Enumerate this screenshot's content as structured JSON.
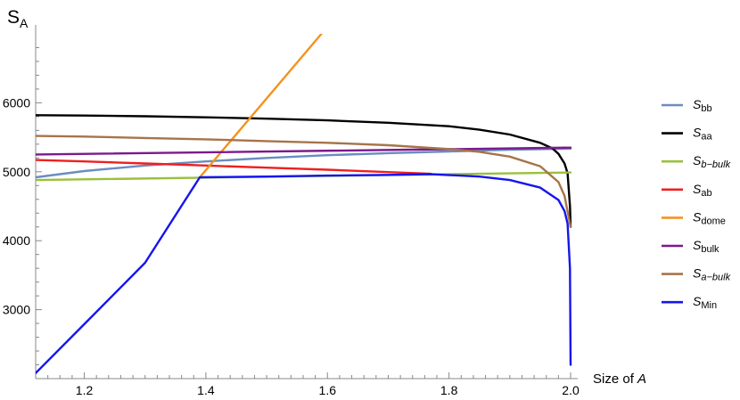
{
  "chart_data": {
    "type": "line",
    "ylabel": {
      "main": "S",
      "sub": "A"
    },
    "xlabel": {
      "prefix": "Size of ",
      "var": "A"
    },
    "xlim": [
      1.12,
      2.0
    ],
    "ylim": [
      2000,
      7000
    ],
    "xticks": [
      1.2,
      1.4,
      1.6,
      1.8,
      2.0
    ],
    "xtick_labels": [
      "1.2",
      "1.4",
      "1.6",
      "1.8",
      "2.0"
    ],
    "yticks": [
      3000,
      4000,
      5000,
      6000
    ],
    "ytick_labels": [
      "3000",
      "4000",
      "5000",
      "6000"
    ],
    "grid": false,
    "legend_position": "right",
    "series": [
      {
        "name": "S",
        "label_sub": "bb",
        "sub_italic": false,
        "color": "#6b8cc0",
        "x": [
          1.12,
          1.2,
          1.3,
          1.4,
          1.5,
          1.6,
          1.7,
          1.8,
          1.9,
          2.0
        ],
        "y": [
          4920,
          5010,
          5090,
          5150,
          5200,
          5240,
          5270,
          5295,
          5320,
          5335
        ]
      },
      {
        "name": "S",
        "label_sub": "aa",
        "sub_italic": false,
        "color": "#000000",
        "x": [
          1.12,
          1.2,
          1.3,
          1.4,
          1.5,
          1.6,
          1.7,
          1.8,
          1.85,
          1.9,
          1.95,
          1.97,
          1.98,
          1.99,
          1.995,
          1.999,
          2.0
        ],
        "y": [
          5820,
          5815,
          5805,
          5790,
          5770,
          5745,
          5710,
          5660,
          5610,
          5540,
          5420,
          5340,
          5260,
          5120,
          4980,
          4500,
          4200
        ]
      },
      {
        "name": "S",
        "label_sub": "b−bulk",
        "sub_italic": true,
        "color": "#99c03c",
        "x": [
          1.12,
          2.0
        ],
        "y": [
          4880,
          4990
        ]
      },
      {
        "name": "S",
        "label_sub": "ab",
        "sub_italic": false,
        "color": "#ee2020",
        "x": [
          1.12,
          1.2,
          1.3,
          1.4,
          1.5,
          1.6,
          1.7,
          1.77
        ],
        "y": [
          5170,
          5150,
          5120,
          5090,
          5060,
          5030,
          4995,
          4970
        ]
      },
      {
        "name": "S",
        "label_sub": "dome",
        "sub_italic": false,
        "color": "#f5921e",
        "x": [
          1.39,
          1.59
        ],
        "y": [
          4920,
          7000
        ]
      },
      {
        "name": "S",
        "label_sub": "bulk",
        "sub_italic": false,
        "color": "#7b1a8c",
        "x": [
          1.12,
          2.0
        ],
        "y": [
          5250,
          5350
        ]
      },
      {
        "name": "S",
        "label_sub": "a−bulk",
        "sub_italic": true,
        "color": "#a6744a",
        "x": [
          1.12,
          1.2,
          1.3,
          1.4,
          1.5,
          1.6,
          1.7,
          1.8,
          1.85,
          1.9,
          1.95,
          1.98,
          1.99,
          2.0
        ],
        "y": [
          5520,
          5510,
          5490,
          5470,
          5445,
          5420,
          5385,
          5330,
          5290,
          5220,
          5080,
          4850,
          4650,
          4200
        ]
      },
      {
        "name": "S",
        "label_sub": "Min",
        "sub_italic": false,
        "color": "#1515ee",
        "x": [
          1.12,
          1.2,
          1.3,
          1.39,
          1.45,
          1.5,
          1.6,
          1.7,
          1.77,
          1.85,
          1.9,
          1.95,
          1.98,
          1.99,
          1.995,
          1.999,
          2.0
        ],
        "y": [
          2080,
          2790,
          3680,
          4920,
          4925,
          4930,
          4945,
          4955,
          4965,
          4930,
          4880,
          4770,
          4590,
          4430,
          4250,
          3600,
          2200
        ]
      }
    ]
  }
}
